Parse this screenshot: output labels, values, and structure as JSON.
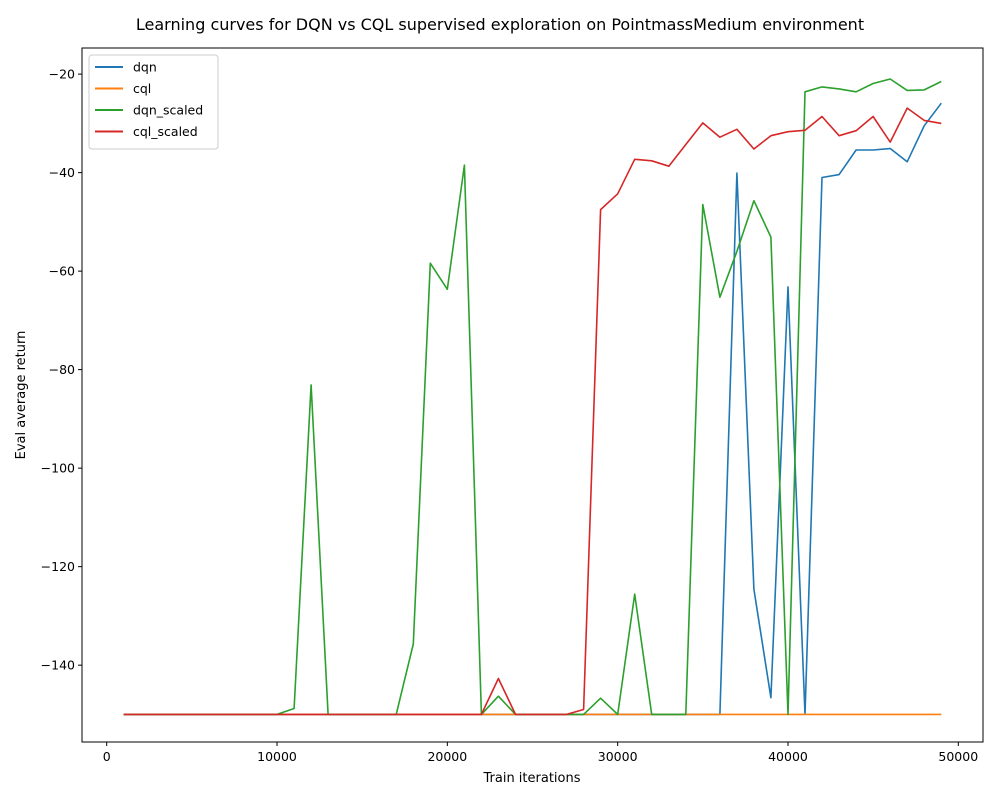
{
  "chart_data": {
    "type": "line",
    "title": "Learning curves for DQN vs CQL supervised exploration on PointmassMedium environment",
    "xlabel": "Train iterations",
    "ylabel": "Eval average return",
    "xlim": [
      -1450,
      51450
    ],
    "ylim": [
      -155.6,
      -14.7
    ],
    "xticks": [
      0,
      10000,
      20000,
      30000,
      40000,
      50000
    ],
    "yticks": [
      -140,
      -120,
      -100,
      -80,
      -60,
      -40,
      -20
    ],
    "xtick_labels": [
      "0",
      "10000",
      "20000",
      "30000",
      "40000",
      "50000"
    ],
    "ytick_labels": [
      "−140",
      "−120",
      "−100",
      "−80",
      "−60",
      "−40",
      "−20"
    ],
    "grid": false,
    "legend_position": "top-left",
    "x": [
      1000,
      2000,
      3000,
      4000,
      5000,
      6000,
      7000,
      8000,
      9000,
      10000,
      11000,
      12000,
      13000,
      14000,
      15000,
      16000,
      17000,
      18000,
      19000,
      20000,
      21000,
      22000,
      23000,
      24000,
      25000,
      26000,
      27000,
      28000,
      29000,
      30000,
      31000,
      32000,
      33000,
      34000,
      35000,
      36000,
      37000,
      38000,
      39000,
      40000,
      41000,
      42000,
      43000,
      44000,
      45000,
      46000,
      47000,
      48000,
      49000
    ],
    "series": [
      {
        "name": "dqn",
        "color": "#1f77b4",
        "values": [
          -150,
          -150,
          -150,
          -150,
          -150,
          -150,
          -150,
          -150,
          -150,
          -150,
          -150,
          -150,
          -150,
          -150,
          -150,
          -150,
          -150,
          -150,
          -150,
          -150,
          -150,
          -150,
          -150,
          -150,
          -150,
          -150,
          -150,
          -150,
          -150,
          -150,
          -150,
          -150,
          -150,
          -150,
          -150,
          -150,
          -40.1,
          -124.6,
          -146.6,
          -63.2,
          -150,
          -41,
          -40.4,
          -35.4,
          -35.4,
          -35.1,
          -37.8,
          -30.5,
          -25.9
        ]
      },
      {
        "name": "cql",
        "color": "#ff7f0e",
        "values": [
          -150,
          -150,
          -150,
          -150,
          -150,
          -150,
          -150,
          -150,
          -150,
          -150,
          -150,
          -150,
          -150,
          -150,
          -150,
          -150,
          -150,
          -150,
          -150,
          -150,
          -150,
          -150,
          -150,
          -150,
          -150,
          -150,
          -150,
          -150,
          -150,
          -150,
          -150,
          -150,
          -150,
          -150,
          -150,
          -150,
          -150,
          -150,
          -150,
          -150,
          -150,
          -150,
          -150,
          -150,
          -150,
          -150,
          -150,
          -150,
          -150
        ]
      },
      {
        "name": "dqn_scaled",
        "color": "#2ca02c",
        "values": [
          -150,
          -150,
          -150,
          -150,
          -150,
          -150,
          -150,
          -150,
          -150,
          -150,
          -148.8,
          -83.1,
          -150,
          -150,
          -150,
          -150,
          -150,
          -135.7,
          -58.4,
          -63.7,
          -38.5,
          -150,
          -146.3,
          -150,
          -150,
          -150,
          -150,
          -150,
          -146.7,
          -150,
          -125.6,
          -150,
          -150,
          -150,
          -46.5,
          -65.3,
          -56,
          -45.7,
          -53.1,
          -150,
          -23.6,
          -22.6,
          -23,
          -23.6,
          -21.9,
          -21,
          -23.3,
          -23.2,
          -21.5
        ]
      },
      {
        "name": "cql_scaled",
        "color": "#d62728",
        "values": [
          -150,
          -150,
          -150,
          -150,
          -150,
          -150,
          -150,
          -150,
          -150,
          -150,
          -150,
          -150,
          -150,
          -150,
          -150,
          -150,
          -150,
          -150,
          -150,
          -150,
          -150,
          -150,
          -142.7,
          -150,
          -150,
          -150,
          -150,
          -149,
          -47.5,
          -44.3,
          -37.3,
          -37.6,
          -38.7,
          -34.3,
          -29.9,
          -32.8,
          -31.2,
          -35.2,
          -32.5,
          -31.7,
          -31.4,
          -28.6,
          -32.5,
          -31.5,
          -28.6,
          -33.8,
          -26.9,
          -29.4,
          -30
        ]
      }
    ]
  }
}
